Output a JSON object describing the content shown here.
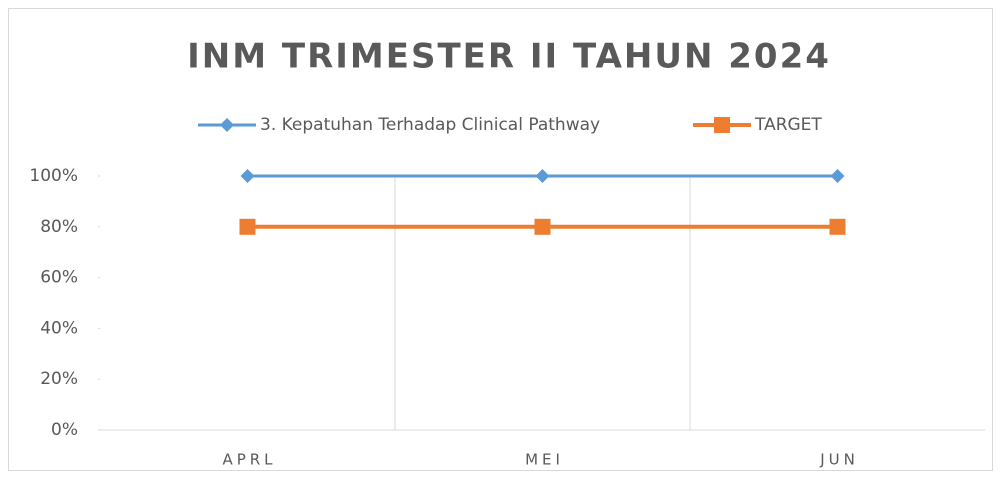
{
  "chart_data": {
    "type": "line",
    "title": "INM TRIMESTER II TAHUN 2024",
    "categories": [
      "APRL",
      "MEI",
      "JUN"
    ],
    "series": [
      {
        "name": "3. Kepatuhan Terhadap Clinical Pathway",
        "color": "#5b9bd5",
        "marker": "diamond",
        "values": [
          100,
          100,
          100
        ]
      },
      {
        "name": "TARGET",
        "color": "#ed7d31",
        "marker": "square",
        "values": [
          80,
          80,
          80
        ]
      }
    ],
    "ylim": [
      0,
      100
    ],
    "yticks": [
      {
        "value": 0,
        "label": "0%"
      },
      {
        "value": 20,
        "label": "20%"
      },
      {
        "value": 40,
        "label": "40%"
      },
      {
        "value": 60,
        "label": "60%"
      },
      {
        "value": 80,
        "label": "80%"
      },
      {
        "value": 100,
        "label": "100%"
      }
    ],
    "legend": "top"
  }
}
